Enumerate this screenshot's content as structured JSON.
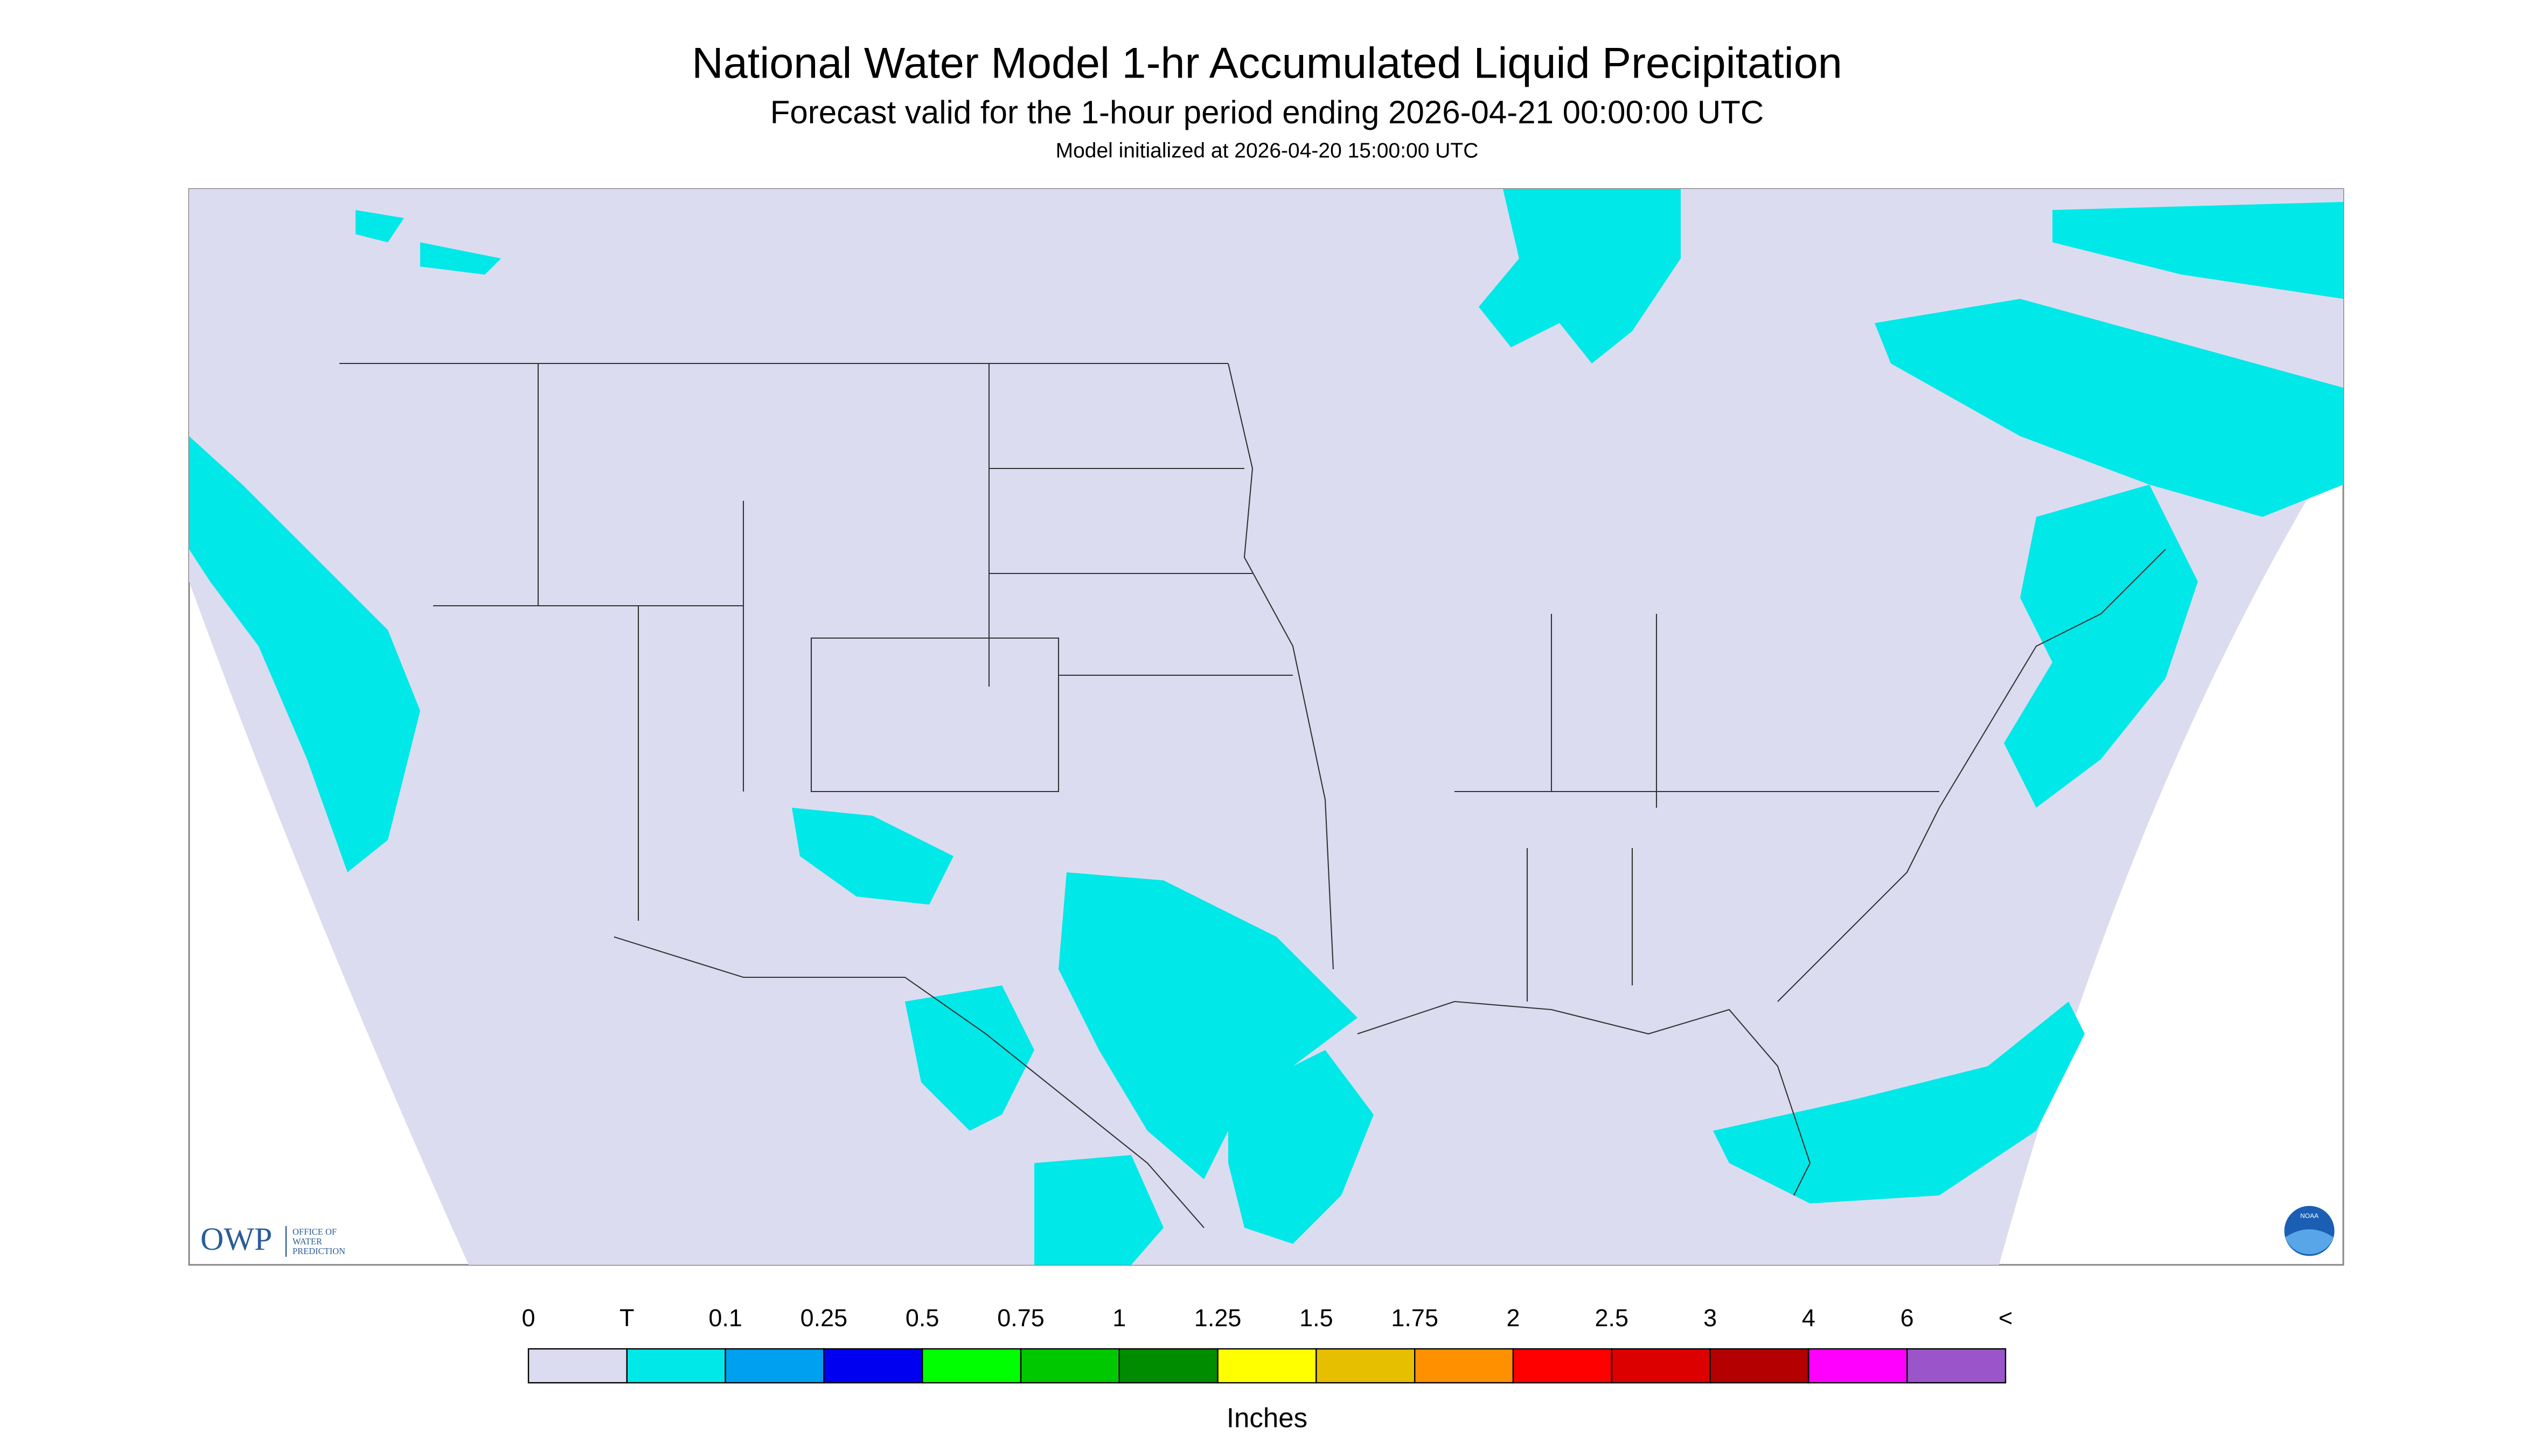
{
  "header": {
    "title": "National Water Model 1-hr Accumulated Liquid Precipitation",
    "subtitle": "Forecast valid for the 1-hour period ending 2026-04-21 00:00:00 UTC",
    "init": "Model initialized at 2026-04-20 15:00:00 UTC"
  },
  "legend": {
    "labels": [
      "0",
      "T",
      "0.1",
      "0.25",
      "0.5",
      "0.75",
      "1",
      "1.25",
      "1.5",
      "1.75",
      "2",
      "2.5",
      "3",
      "4",
      "6",
      "<"
    ],
    "colors": [
      "#dcdcf0",
      "#00e8e8",
      "#00a0f0",
      "#0000f0",
      "#00ff00",
      "#00c800",
      "#008c00",
      "#ffff00",
      "#e6c000",
      "#ff9000",
      "#ff0000",
      "#dc0000",
      "#b40000",
      "#ff00ff",
      "#9955c9"
    ],
    "unit": "Inches"
  },
  "logos": {
    "owp": "OWP",
    "owp_name": [
      "OFFICE OF",
      "WATER",
      "PREDICTION"
    ],
    "noaa": "NOAA"
  }
}
